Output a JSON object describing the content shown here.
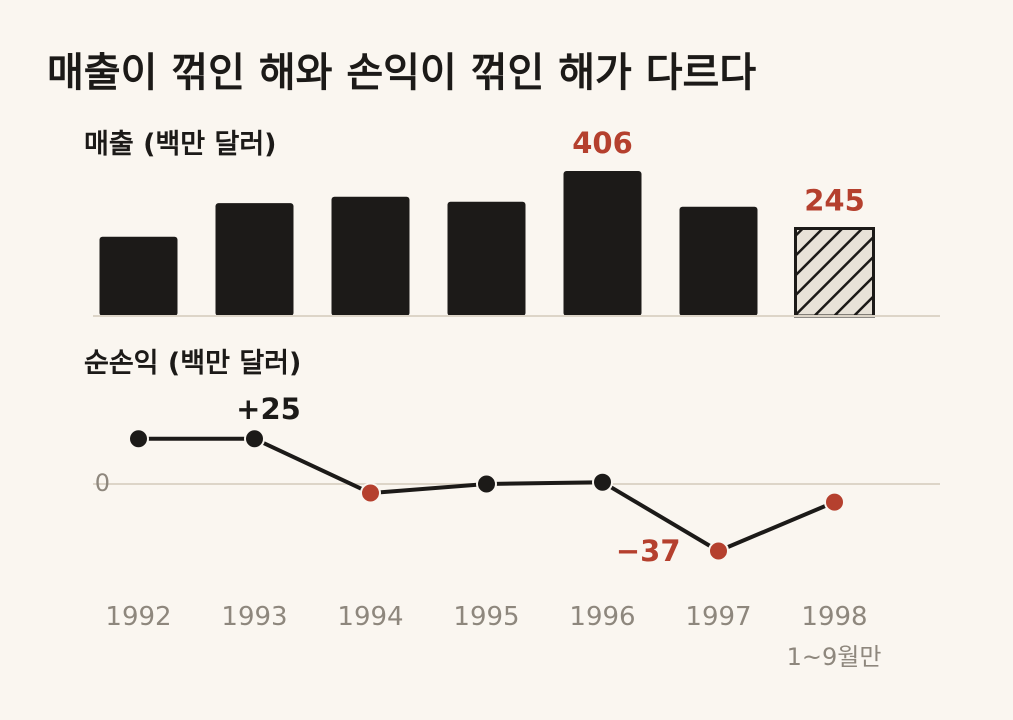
{
  "title": "매출이 꺾인 해와 손익이 꺾인 해가 다르다",
  "colors": {
    "background": "#faf6f0",
    "bar": "#1c1a18",
    "highlight": "#b5402e",
    "axis": "#ddd5c8",
    "muted": "#8e877d",
    "hatch_bg": "#e8e2d8"
  },
  "chart_data": [
    {
      "type": "bar",
      "title": "매출 (백만 달러)",
      "categories": [
        "1992",
        "1993",
        "1994",
        "1995",
        "1996",
        "1997",
        "1998"
      ],
      "values": [
        222,
        316,
        334,
        320,
        406,
        306,
        245
      ],
      "labels": [
        {
          "category": "1996",
          "text": "406",
          "color": "#b5402e"
        },
        {
          "category": "1998",
          "text": "245",
          "color": "#b5402e"
        }
      ],
      "partial_category": "1998",
      "ylim": [
        0,
        406
      ]
    },
    {
      "type": "line",
      "title": "순손익 (백만 달러)",
      "categories": [
        "1992",
        "1993",
        "1994",
        "1995",
        "1996",
        "1997",
        "1998"
      ],
      "values": [
        25,
        25,
        -5,
        0,
        1,
        -37,
        -10
      ],
      "negative_color": "#b5402e",
      "labels": [
        {
          "category": "1993",
          "text": "+25",
          "color": "#1c1a18"
        },
        {
          "category": "1997",
          "text": "−37",
          "color": "#b5402e"
        }
      ],
      "zero_label": "0",
      "ylim": [
        -37,
        25
      ]
    }
  ],
  "x_axis": {
    "ticks": [
      "1992",
      "1993",
      "1994",
      "1995",
      "1996",
      "1997",
      "1998"
    ],
    "note": "1~9월만"
  }
}
